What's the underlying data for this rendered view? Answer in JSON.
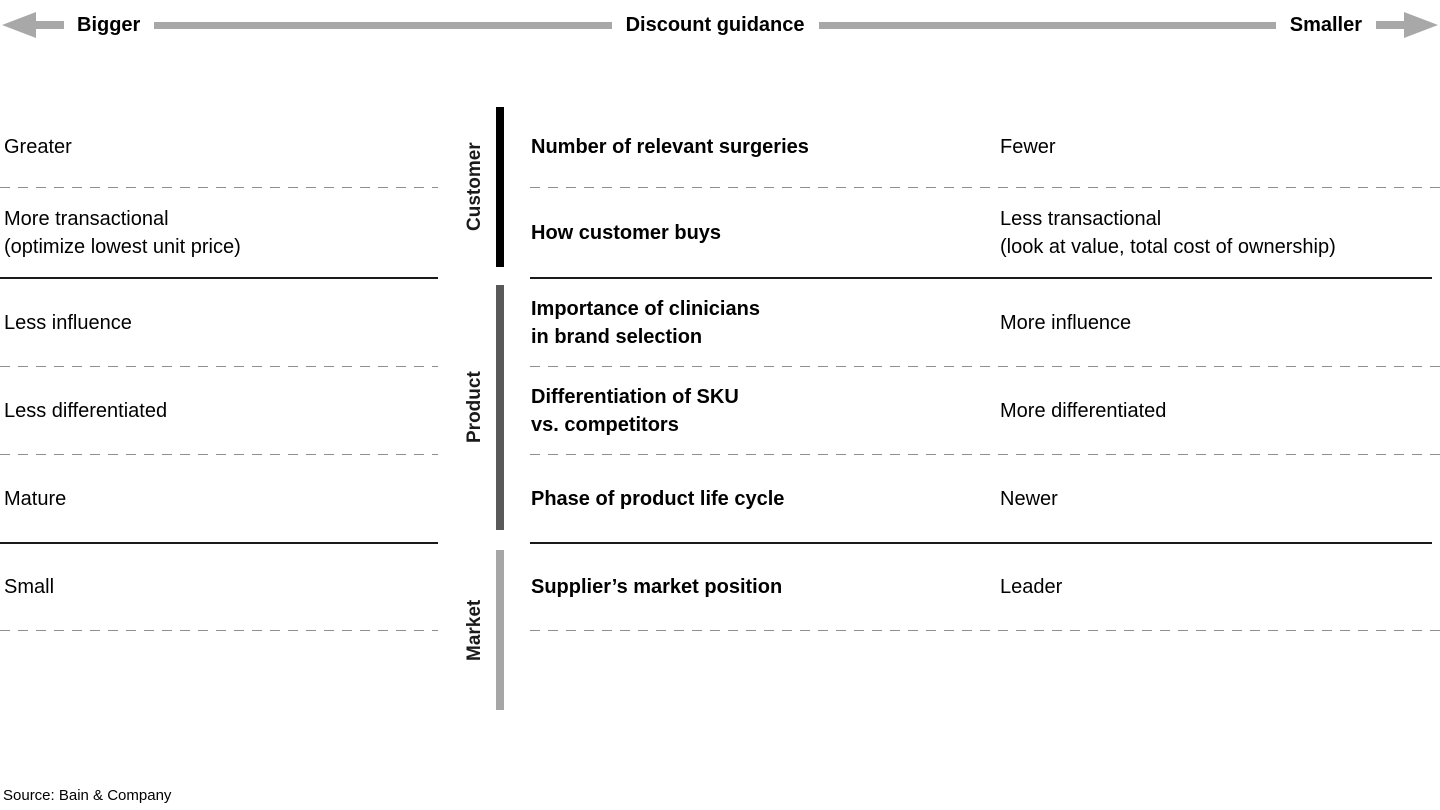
{
  "header": {
    "left_label": "Bigger",
    "center_label": "Discount guidance",
    "right_label": "Smaller",
    "arrow_color": "#a8a8a8"
  },
  "table": {
    "sections": [
      {
        "category": "Customer",
        "bar_color": "#000000",
        "rows": [
          {
            "left": "Greater",
            "factor": "Number of relevant surgeries",
            "right": "Fewer"
          },
          {
            "left": "More transactional\n(optimize lowest unit price)",
            "factor": "How customer buys",
            "right": "Less transactional\n(look at value, total cost of ownership)"
          }
        ]
      },
      {
        "category": "Product",
        "bar_color": "#595959",
        "rows": [
          {
            "left": "Less influence",
            "factor": "Importance of clinicians\nin brand selection",
            "right": "More influence"
          },
          {
            "left": "Less differentiated",
            "factor": "Differentiation of SKU\nvs. competitors",
            "right": "More differentiated"
          },
          {
            "left": "Mature",
            "factor": "Phase of product life cycle",
            "right": "Newer"
          }
        ]
      },
      {
        "category": "Market",
        "bar_color": "#a6a6a6",
        "rows": [
          {
            "left": "Small",
            "factor": "Supplier’s market position",
            "right": "Leader"
          },
          {
            "left": "",
            "factor": "",
            "right": ""
          }
        ]
      }
    ]
  },
  "source": "Source: Bain & Company"
}
